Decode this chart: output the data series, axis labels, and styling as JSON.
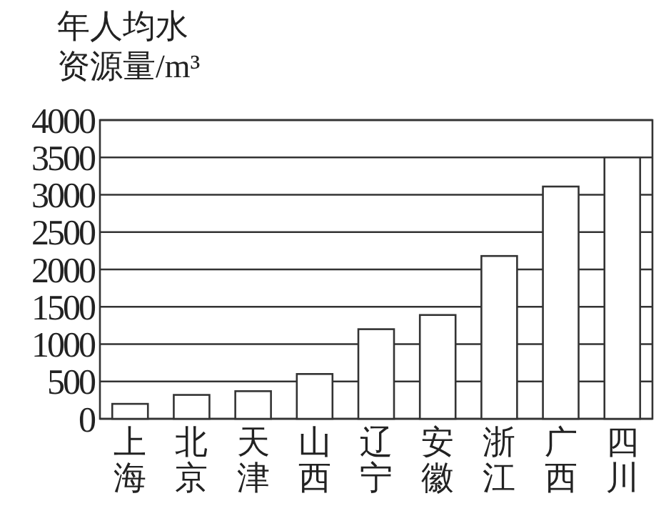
{
  "chart_data": {
    "type": "bar",
    "ylabel": "年人均水资源量/m³",
    "categories": [
      "上海",
      "北京",
      "天津",
      "山西",
      "辽宁",
      "安徽",
      "浙江",
      "广西",
      "四川"
    ],
    "values": [
      200,
      320,
      370,
      600,
      1200,
      1390,
      2180,
      3110,
      3500
    ],
    "color": "#ffffff",
    "ylim": [
      0,
      4000
    ],
    "yticks": [
      0,
      500,
      1000,
      1500,
      2000,
      2500,
      3000,
      3500,
      4000
    ],
    "grid": "y"
  }
}
